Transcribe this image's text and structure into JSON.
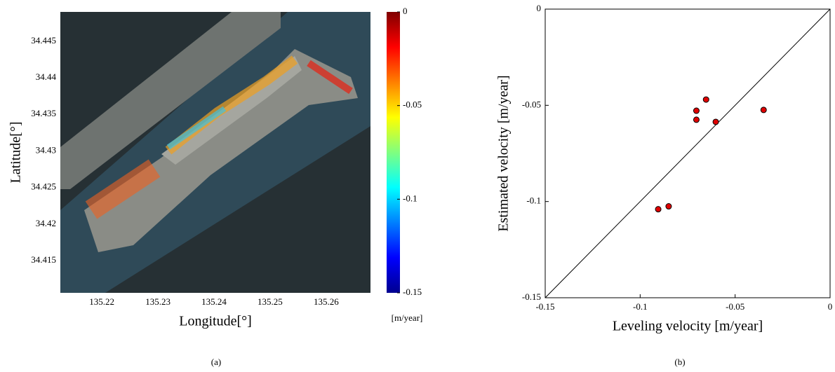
{
  "chart_data": [
    {
      "type": "map",
      "xlabel": "Longitude[°]",
      "ylabel": "Latitude[°]",
      "caption": "(a)",
      "xlim": [
        135.2126,
        135.2679
      ],
      "xticks": [
        135.22,
        135.23,
        135.24,
        135.25,
        135.26
      ],
      "ylim": [
        34.4106,
        34.449
      ],
      "yticks": [
        34.415,
        34.42,
        34.425,
        34.43,
        34.435,
        34.44,
        34.445
      ],
      "colorbar": {
        "label": "[m/year]",
        "lim": [
          -0.15,
          0
        ],
        "ticks": [
          0,
          -0.05,
          -0.1,
          -0.15
        ]
      }
    },
    {
      "type": "scatter",
      "xlabel": "Leveling velocity [m/year]",
      "ylabel": "Estimated velocity [m/year]",
      "caption": "(b)",
      "xlim": [
        -0.15,
        0
      ],
      "ylim": [
        -0.15,
        0
      ],
      "xticks": [
        -0.15,
        -0.1,
        -0.05,
        0
      ],
      "yticks": [
        -0.15,
        -0.1,
        -0.05,
        0
      ],
      "color": "#e00000",
      "x": [
        -0.0905,
        -0.085,
        -0.0653,
        -0.0704,
        -0.0704,
        -0.0602,
        -0.035
      ],
      "values": [
        -0.104,
        -0.1025,
        -0.047,
        -0.0528,
        -0.0575,
        -0.0586,
        -0.0524
      ]
    }
  ]
}
